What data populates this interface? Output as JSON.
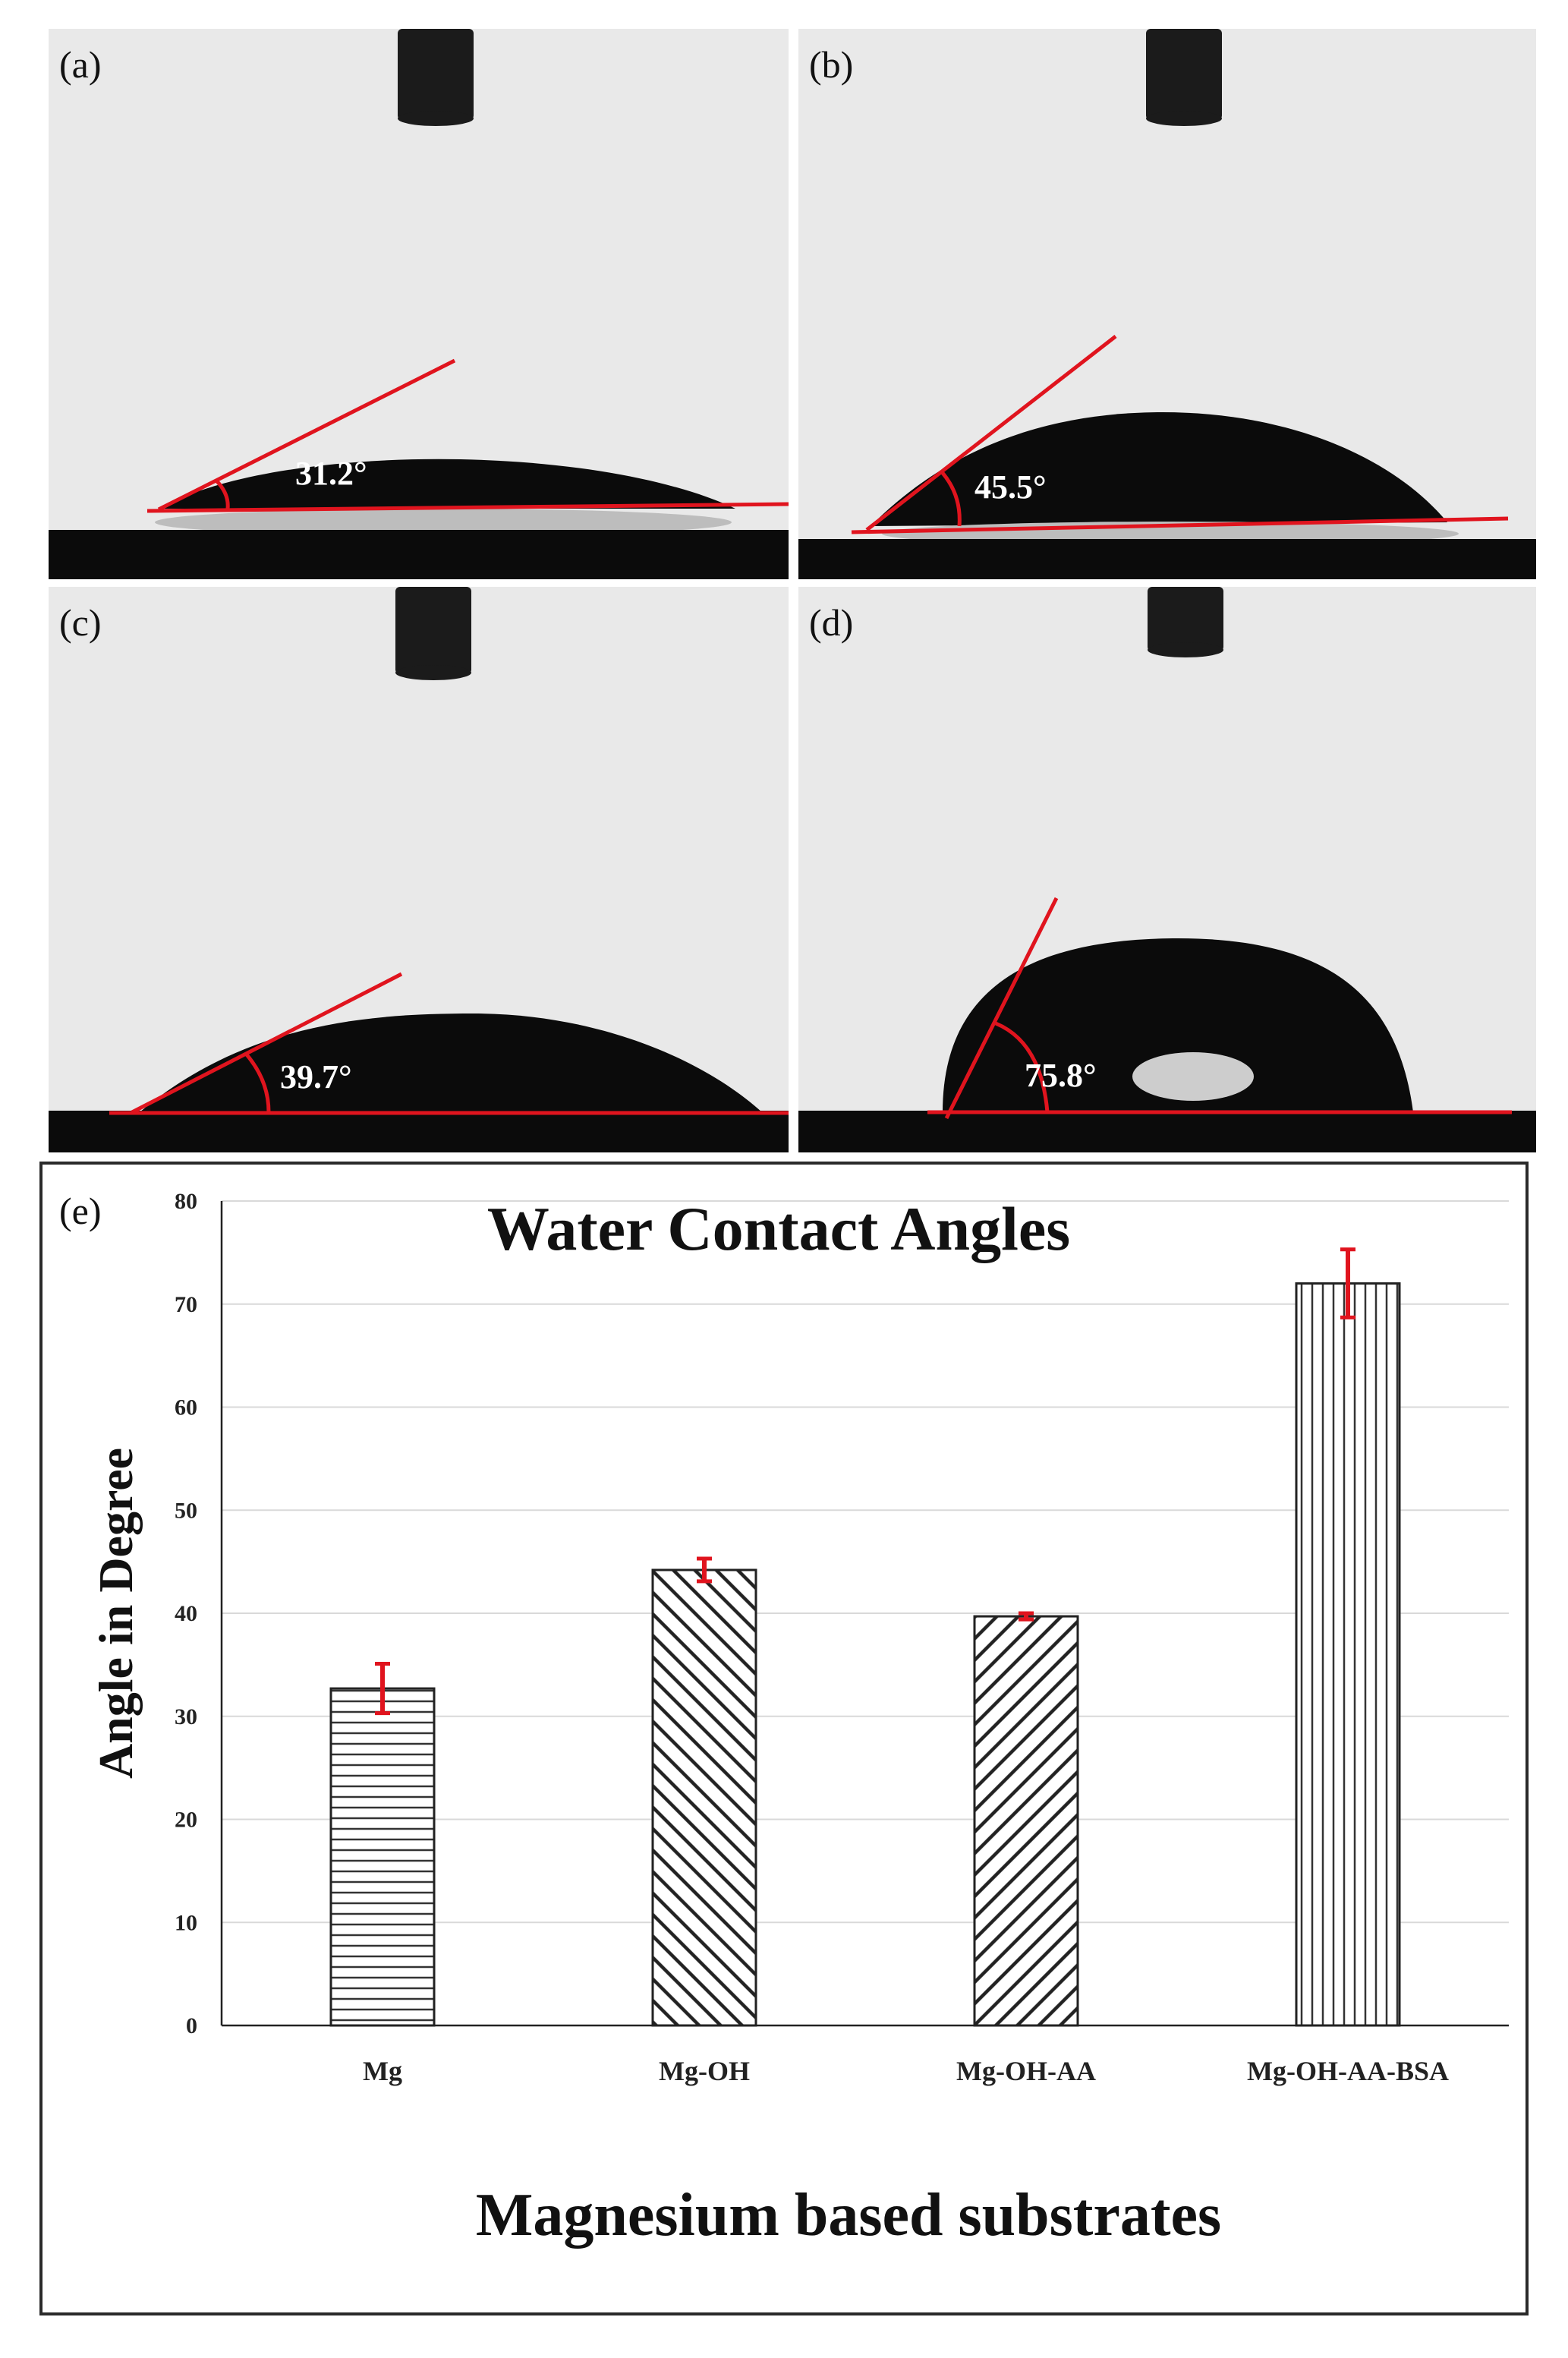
{
  "panels": [
    {
      "label": "(a)",
      "angle": "31.2°"
    },
    {
      "label": "(b)",
      "angle": "45.5°"
    },
    {
      "label": "(c)",
      "angle": "39.7°"
    },
    {
      "label": "(d)",
      "angle": "75.8°"
    }
  ],
  "colors": {
    "drop": "#0b0b0b",
    "background": "#e9e9e9",
    "tangent": "#e0141e",
    "errorbar": "#e0141e",
    "bar_fill": "#ffffff",
    "bar_hatch": "#333333"
  },
  "chart_data": {
    "type": "bar",
    "panel_label": "(e)",
    "title": "Water Contact Angles",
    "xlabel": "Magnesium based substrates",
    "ylabel": "Angle in Degree",
    "categories": [
      "Mg",
      "Mg-OH",
      "Mg-OH-AA",
      "Mg-OH-AA-BSA"
    ],
    "values": [
      32.7,
      44.2,
      39.7,
      72.0
    ],
    "errors": [
      2.4,
      1.1,
      0.3,
      3.3
    ],
    "hatch": [
      "horizontal",
      "diagonal-down",
      "diagonal-up",
      "vertical"
    ],
    "ylim": [
      0,
      80
    ],
    "yticks": [
      "0",
      "10",
      "20",
      "30",
      "40",
      "50",
      "60",
      "70",
      "80"
    ],
    "grid": true,
    "legend": "none"
  }
}
